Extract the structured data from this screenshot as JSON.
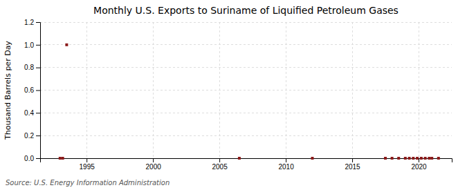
{
  "chart_data": {
    "type": "scatter",
    "title": "Monthly U.S. Exports to Suriname of Liquified Petroleum Gases",
    "ylabel": "Thousand Barrels per Day",
    "source": "Source: U.S. Energy Information Administration",
    "x": [
      1993.0,
      1993.2,
      1993.5,
      2006.5,
      2012.0,
      2017.5,
      2018.0,
      2018.5,
      2019.0,
      2019.3,
      2019.6,
      2019.9,
      2020.2,
      2020.5,
      2020.8,
      2021.0,
      2021.5
    ],
    "values": [
      0.0,
      0.0,
      1.0,
      0.0,
      0.0,
      0.0,
      0.0,
      0.0,
      0.0,
      0.0,
      0.0,
      0.0,
      0.0,
      0.0,
      0.0,
      0.0,
      0.0
    ],
    "color": "#8b1a1a",
    "marker": "square",
    "xlim": [
      1991.5,
      2022.5
    ],
    "xticks": [
      1995,
      2000,
      2005,
      2010,
      2015,
      2020
    ],
    "ylim": [
      0.0,
      1.2
    ],
    "yticks": [
      {
        "value": 0.0,
        "label": "0.0"
      },
      0.2,
      0.4,
      0.6,
      0.8,
      {
        "value": 1.0,
        "label": "1.0"
      },
      1.2
    ],
    "grid": true
  }
}
